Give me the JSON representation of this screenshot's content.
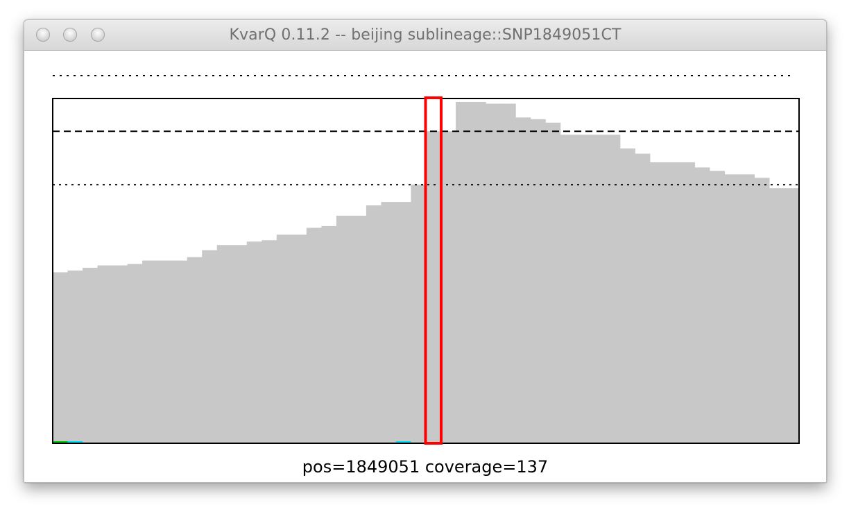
{
  "window": {
    "title": "KvarQ 0.11.2 -- beijing sublineage::SNP1849051CT",
    "buttons": [
      "close",
      "minimize",
      "zoom"
    ]
  },
  "status": {
    "text": "pos=1849051 coverage=137"
  },
  "colors": {
    "bars": "#c8c8c8",
    "frame": "#000000",
    "marker": "#ff0000",
    "reference_lines": "#000000"
  },
  "chart_data": {
    "type": "bar",
    "grid": false,
    "legend": "none",
    "ylim": [
      0,
      1
    ],
    "values": [
      0.496,
      0.501,
      0.509,
      0.516,
      0.516,
      0.52,
      0.53,
      0.53,
      0.53,
      0.54,
      0.56,
      0.575,
      0.575,
      0.585,
      0.589,
      0.605,
      0.605,
      0.625,
      0.63,
      0.66,
      0.66,
      0.69,
      0.7,
      0.7,
      0.75,
      0.905,
      0.905,
      0.99,
      0.99,
      0.985,
      0.985,
      0.945,
      0.94,
      0.93,
      0.895,
      0.895,
      0.895,
      0.895,
      0.855,
      0.84,
      0.815,
      0.815,
      0.815,
      0.8,
      0.79,
      0.78,
      0.78,
      0.77,
      0.74,
      0.74
    ],
    "marker_bin": 25,
    "reference_lines": [
      0.905,
      0.75
    ],
    "top_dotted_line": true,
    "small_markers": [
      {
        "bin": 0,
        "color": "#00cc00"
      },
      {
        "bin": 1,
        "color": "#00e5ff"
      },
      {
        "bin": 23,
        "color": "#00e5ff"
      }
    ]
  }
}
